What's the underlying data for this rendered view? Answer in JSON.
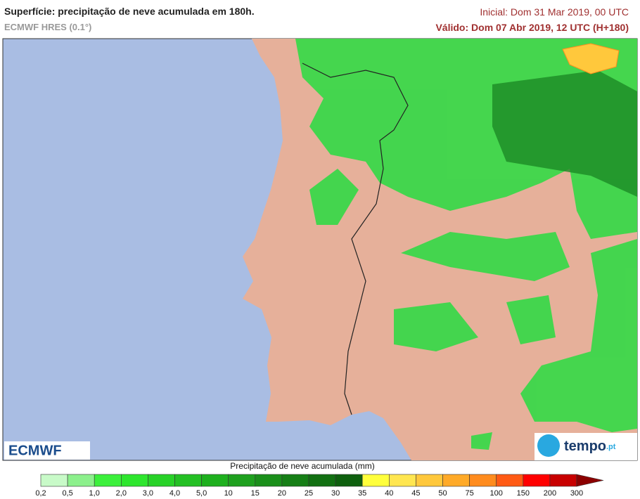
{
  "header": {
    "title": "Superfície: precipitação de neve acumulada em 180h.",
    "model": "ECMWF HRES (0.1°)",
    "initial": "Inicial: Dom 31 Mar 2019, 00 UTC",
    "valid": "Válido: Dom 07 Abr 2019, 12 UTC (H+180)"
  },
  "logos": {
    "left": "ECMWF",
    "right": "tempo",
    "right_suffix": ".pt"
  },
  "legend": {
    "title": "Precipitação de neve acumulada (mm)",
    "labels": [
      "0,2",
      "0,5",
      "1,0",
      "2,0",
      "3,0",
      "4,0",
      "5,0",
      "10",
      "15",
      "20",
      "25",
      "30",
      "35",
      "40",
      "45",
      "50",
      "75",
      "100",
      "150",
      "200",
      "300"
    ],
    "colors": [
      "#c8fac8",
      "#8cf08c",
      "#3cf03c",
      "#2ee62e",
      "#28d228",
      "#24c024",
      "#1eb01e",
      "#1ea01e",
      "#1a8f1a",
      "#167f16",
      "#127012",
      "#0e600e",
      "#ffff3c",
      "#ffe650",
      "#ffc83c",
      "#ffaa28",
      "#ff8c1e",
      "#ff5a14",
      "#ff0000",
      "#c80000"
    ],
    "arrow_color": "#8c0000"
  }
}
